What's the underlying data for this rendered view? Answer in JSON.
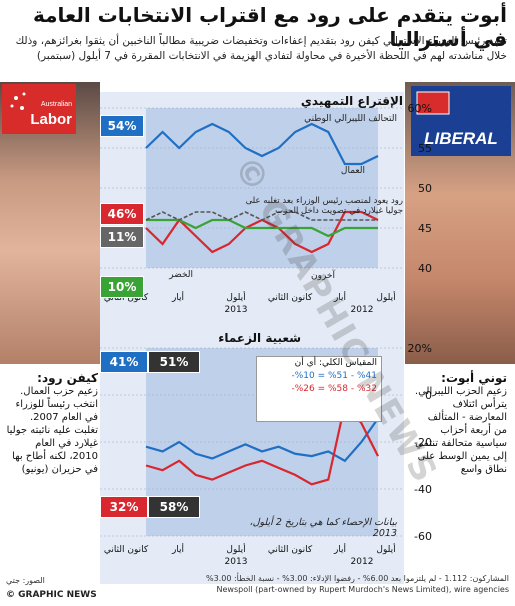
{
  "title": "أبوت يتقدم على رود مع اقتراب الانتخابات العامة في أستراليا",
  "intro": "تعهد رئيس الوزراء الأسترالي كيفن رود بتقديم إعفاءات وتخفيضات ضريبية مطالباً الناخبين أن يثقوا بغرائزهم، وذلك خلال مناشدته لهم في اللحظة الأخيرة في محاولة لتفادي الهزيمة في الانتخابات المقررة في 7 أيلول (سبتمبر)",
  "logos": {
    "labor": "Labor",
    "labor_small": "Australian",
    "liberal": "LIBERAL"
  },
  "primary": {
    "title": "الإقتراع التمهيدي",
    "coalition_label": "التحالف الليبرالي الوطني",
    "labor_label": "العمال",
    "greens_label": "الخضر",
    "others_label": "آخرون",
    "rudd_note": "رود يعود لمنصب رئيس الوزراء بعد تغلبه على جوليا غيلارد في تصويت داخل الحزب",
    "badge_coalition": "54%",
    "badge_labor": "46%",
    "badge_others": "11%",
    "badge_greens": "10%",
    "y_ticks": [
      "60%",
      "55",
      "50",
      "45",
      "40"
    ]
  },
  "leader": {
    "title": "شعبية الزعماء",
    "badge_abbott": "41%",
    "badge_abbott_x": "51%",
    "badge_rudd": "32%",
    "badge_rudd_x": "58%",
    "pollbox_title": "المقياس الكلي: أي أن",
    "pollbox_l1": "%41 - %51 = %10-",
    "pollbox_l2": "%32 - %58 = %26-",
    "data_note": "بيانات الإحصاء كما هي بتاريخ 2 أيلول، 2013",
    "y_ticks": [
      "20%",
      "0",
      "-20",
      "-40",
      "-60"
    ]
  },
  "x_axis": {
    "labels": [
      "أيلول",
      "أيار",
      "كانون الثاني",
      "أيلول",
      "أيار",
      "كانون الثاني",
      "أيلول"
    ],
    "years": [
      "2012",
      "2013"
    ]
  },
  "bio_rudd": {
    "name": "كيفن رود:",
    "role": "زعيم حزب العمال.",
    "text": "انتخب رئيساً للوزراء في العام 2007. تغلبت عليه نائبته جوليا غيلارد في العام 2010، لكنه أطاح بها في حزيران (يونيو)"
  },
  "bio_abbott": {
    "name": "توني أبوت:",
    "role": "زعيم الحزب الليبرالي.",
    "text": "يترأس ائتلاف المعارضة - المتألف من أربعة أحزاب سياسية متحالفة تنتمي إلى يمين الوسط على نطاق واسع"
  },
  "footer": {
    "photos": "الصور: جتي",
    "agency": "© GRAPHIC NEWS",
    "sample": "المشاركون: 1.112 - لم يلتزموا بعد 6.00% - رفضوا الإدلاء: 3.00% - نسبة الخطأ: 3.00%",
    "source": "Newspoll (part-owned by Rupert Murdoch's News Limited), wire agencies"
  },
  "watermark": "© GRAPHIC NEWS",
  "colors": {
    "coalition": "#1f6fc4",
    "labor": "#d8272e",
    "greens": "#3aa335",
    "others": "#555555"
  },
  "chart_data": [
    {
      "type": "line",
      "title": "الإقتراع التمهيدي",
      "ylim": [
        40,
        60
      ],
      "x": [
        "2011-09",
        "2011-11",
        "2012-01",
        "2012-03",
        "2012-05",
        "2012-07",
        "2012-09",
        "2012-11",
        "2013-01",
        "2013-03",
        "2013-05",
        "2013-06",
        "2013-07",
        "2013-08",
        "2013-09"
      ],
      "series": [
        {
          "name": "التحالف الليبرالي الوطني",
          "values": [
            55,
            57,
            55,
            57,
            58,
            57,
            55,
            54,
            55,
            57,
            58,
            57,
            53,
            53,
            54
          ]
        },
        {
          "name": "العمال",
          "values": [
            45,
            43,
            46,
            44,
            42,
            43,
            45,
            46,
            45,
            43,
            42,
            43,
            47,
            47,
            46
          ]
        },
        {
          "name": "الخضر",
          "values": [
            11,
            11,
            11,
            10,
            11,
            11,
            10,
            10,
            10,
            10,
            10,
            9,
            10,
            10,
            10
          ]
        },
        {
          "name": "آخرون",
          "values": [
            11,
            12,
            11,
            12,
            12,
            11,
            12,
            11,
            12,
            12,
            11,
            11,
            11,
            11,
            11
          ]
        }
      ]
    },
    {
      "type": "line",
      "title": "شعبية الزعماء",
      "ylim": [
        -60,
        20
      ],
      "x": [
        "2011-09",
        "2011-11",
        "2012-01",
        "2012-03",
        "2012-05",
        "2012-07",
        "2012-09",
        "2012-11",
        "2013-01",
        "2013-03",
        "2013-05",
        "2013-06",
        "2013-07",
        "2013-08",
        "2013-09"
      ],
      "series": [
        {
          "values": [
            -22,
            -24,
            -20,
            -25,
            -27,
            -24,
            -21,
            -24,
            -22,
            -25,
            -26,
            -24,
            -28,
            -20,
            -10
          ]
        },
        {
          "values": [
            -30,
            -32,
            -28,
            -34,
            -36,
            -33,
            -30,
            -28,
            -31,
            -34,
            -38,
            -36,
            -4,
            -12,
            -26
          ]
        }
      ]
    }
  ]
}
